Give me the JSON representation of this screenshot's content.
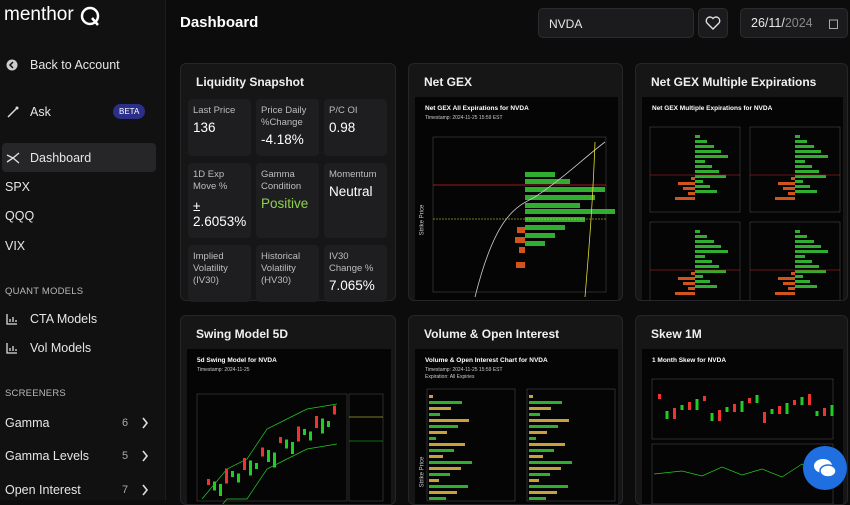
{
  "sidebar": {
    "logo": "menthor",
    "items": [
      {
        "label": "Back to Account"
      },
      {
        "label": "Ask",
        "badge": "BETA"
      },
      {
        "label": "Dashboard"
      },
      {
        "label": "SPX"
      },
      {
        "label": "QQQ"
      },
      {
        "label": "VIX"
      }
    ],
    "sections": [
      {
        "title": "QUANT MODELS",
        "items": [
          {
            "label": "CTA Models"
          },
          {
            "label": "Vol Models"
          }
        ]
      },
      {
        "title": "SCREENERS",
        "items": [
          {
            "label": "Gamma",
            "count": "6"
          },
          {
            "label": "Gamma Levels",
            "count": "5"
          },
          {
            "label": "Open Interest",
            "count": "7"
          }
        ]
      }
    ]
  },
  "header": {
    "title": "Dashboard",
    "search": "NVDA",
    "date_day_month": "26/11/",
    "date_year": "2024"
  },
  "liquidity": {
    "title": "Liquidity Snapshot",
    "cells": [
      {
        "label": "Last Price",
        "value": "136"
      },
      {
        "label": "Price Daily %Change",
        "value": "-4.18%"
      },
      {
        "label": "P/C OI",
        "value": "0.98"
      },
      {
        "label": "1D Exp Move %",
        "value": "± 2.6053%"
      },
      {
        "label": "Gamma Condition",
        "value": "Positive"
      },
      {
        "label": "Momentum",
        "value": "Neutral"
      },
      {
        "label": "Implied Volatility (IV30)"
      },
      {
        "label": "Historical Volatility (HV30)"
      },
      {
        "label": "IV30 Change %",
        "value": "7.065%"
      }
    ]
  },
  "cards": [
    {
      "title": "Net GEX",
      "chart_title": "Net GEX All Expirations for NVDA",
      "subtitle": "Timestamp: 2024-11-25 15:59 EST",
      "axis": "Strike Price"
    },
    {
      "title": "Net GEX Multiple Expirations",
      "chart_title": "Net GEX Multiple Expirations for NVDA"
    },
    {
      "title": "Swing Model 5D",
      "chart_title": "5d Swing Model for NVDA",
      "subtitle": "Timestamp: 2024-11-25"
    },
    {
      "title": "Volume & Open Interest",
      "chart_title": "Volume & Open Interest Chart for NVDA",
      "subtitle": "Timestamp: 2024-11-25 15:59 EST",
      "note": "Expiration: All Expiries",
      "axis": "Strike Price"
    },
    {
      "title": "Skew 1M",
      "chart_title": "1 Month Skew for NVDA"
    }
  ]
}
